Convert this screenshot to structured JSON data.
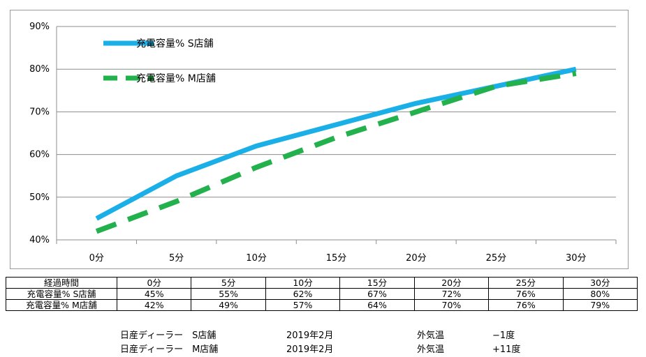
{
  "chart_data": {
    "type": "line",
    "categories": [
      "0分",
      "5分",
      "10分",
      "15分",
      "20分",
      "25分",
      "30分"
    ],
    "y_ticks": [
      "40%",
      "50%",
      "60%",
      "70%",
      "80%",
      "90%"
    ],
    "ylim": [
      40,
      90
    ],
    "grid": true,
    "legend_position": "top-left",
    "series": [
      {
        "name": "充電容量% S店舗",
        "values": [
          45,
          55,
          62,
          67,
          72,
          76,
          80
        ],
        "color": "#1AAFE6",
        "style": "solid"
      },
      {
        "name": "充電容量% M店舗",
        "values": [
          42,
          49,
          57,
          64,
          70,
          76,
          79
        ],
        "color": "#22B14C",
        "style": "dashed"
      }
    ]
  },
  "table": {
    "header": [
      "経過時間",
      "0分",
      "5分",
      "10分",
      "15分",
      "20分",
      "25分",
      "30分"
    ],
    "rows": [
      [
        "充電容量% S店舗",
        "45%",
        "55%",
        "62%",
        "67%",
        "72%",
        "76%",
        "80%"
      ],
      [
        "充電容量% M店舗",
        "42%",
        "49%",
        "57%",
        "64%",
        "70%",
        "76%",
        "79%"
      ]
    ]
  },
  "notes": [
    {
      "dealer": "日産ディーラー　S店舗",
      "date": "2019年2月",
      "temp_label": "外気温",
      "temp_value": "−1度"
    },
    {
      "dealer": "日産ディーラー　M店舗",
      "date": "2019年2月",
      "temp_label": "外気温",
      "temp_value": "+11度"
    }
  ]
}
